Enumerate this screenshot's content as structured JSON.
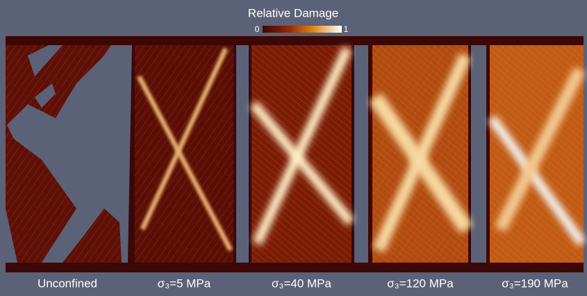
{
  "title": "Relative Damage",
  "colorbar": {
    "min_label": "0",
    "max_label": "1"
  },
  "panels": [
    {
      "label": "Unconfined"
    },
    {
      "label": "σ₃=5 MPa"
    },
    {
      "label": "σ₃=40 MPa"
    },
    {
      "label": "σ₃=120 MPa"
    },
    {
      "label": "σ₃=190 MPa"
    }
  ]
}
